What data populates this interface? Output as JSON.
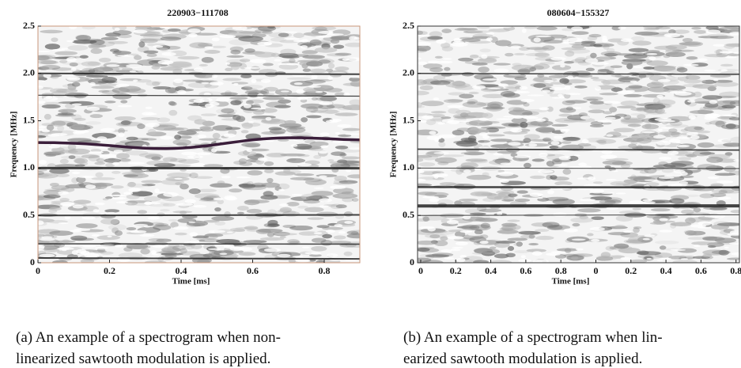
{
  "figures": [
    {
      "title": "220903−111708",
      "ylabel": "Frequency [MHz]",
      "xlabel": "Time [ms]",
      "yticks": [
        "0",
        "0.5",
        "1.0",
        "1.5",
        "2.0",
        "2.5"
      ],
      "xticks": [
        "0",
        "0.2",
        "0.4",
        "0.6",
        "0.8"
      ],
      "caption": [
        "(a) An example of a spectrogram when non-",
        "linearized sawtooth modulation is applied."
      ]
    },
    {
      "title": "080604−155327",
      "ylabel": "Frequency [MHz]",
      "xlabel": "Time [ms]",
      "yticks": [
        "0",
        "0.5",
        "1.0",
        "1.5",
        "2.0",
        "2.5"
      ],
      "xticks": [
        "0",
        "0.2",
        "0.4",
        "0.6",
        "0.8",
        "0",
        "0.2",
        "0.4",
        "0.6",
        "0.8"
      ],
      "caption": [
        "(b) An example of a spectrogram when lin-",
        "earized sawtooth modulation is applied."
      ]
    }
  ]
}
